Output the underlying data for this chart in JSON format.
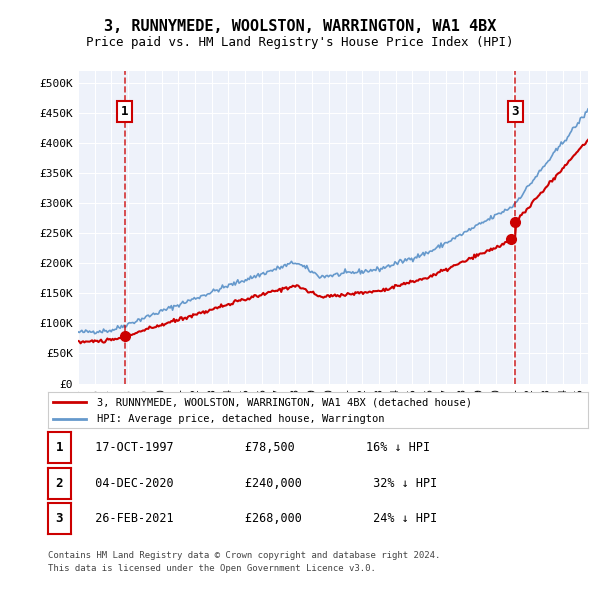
{
  "title": "3, RUNNYMEDE, WOOLSTON, WARRINGTON, WA1 4BX",
  "subtitle": "Price paid vs. HM Land Registry's House Price Index (HPI)",
  "legend_label_red": "3, RUNNYMEDE, WOOLSTON, WARRINGTON, WA1 4BX (detached house)",
  "legend_label_blue": "HPI: Average price, detached house, Warrington",
  "footer1": "Contains HM Land Registry data © Crown copyright and database right 2024.",
  "footer2": "This data is licensed under the Open Government Licence v3.0.",
  "table_rows": [
    {
      "num": "1",
      "date": "17-OCT-1997",
      "price": "£78,500",
      "hpi": "16% ↓ HPI"
    },
    {
      "num": "2",
      "date": "04-DEC-2020",
      "price": "£240,000",
      "hpi": "32% ↓ HPI"
    },
    {
      "num": "3",
      "date": "26-FEB-2021",
      "price": "£268,000",
      "hpi": "24% ↓ HPI"
    }
  ],
  "sale1_year": 1997.8,
  "sale1_price": 78500,
  "sale2_year": 2020.92,
  "sale2_price": 240000,
  "sale3_year": 2021.15,
  "sale3_price": 268000,
  "ylim": [
    0,
    520000
  ],
  "xlim_start": 1995.0,
  "xlim_end": 2025.5,
  "plot_bg": "#eef2fa",
  "red_color": "#cc0000",
  "blue_color": "#6699cc",
  "dashed_color": "#cc0000"
}
